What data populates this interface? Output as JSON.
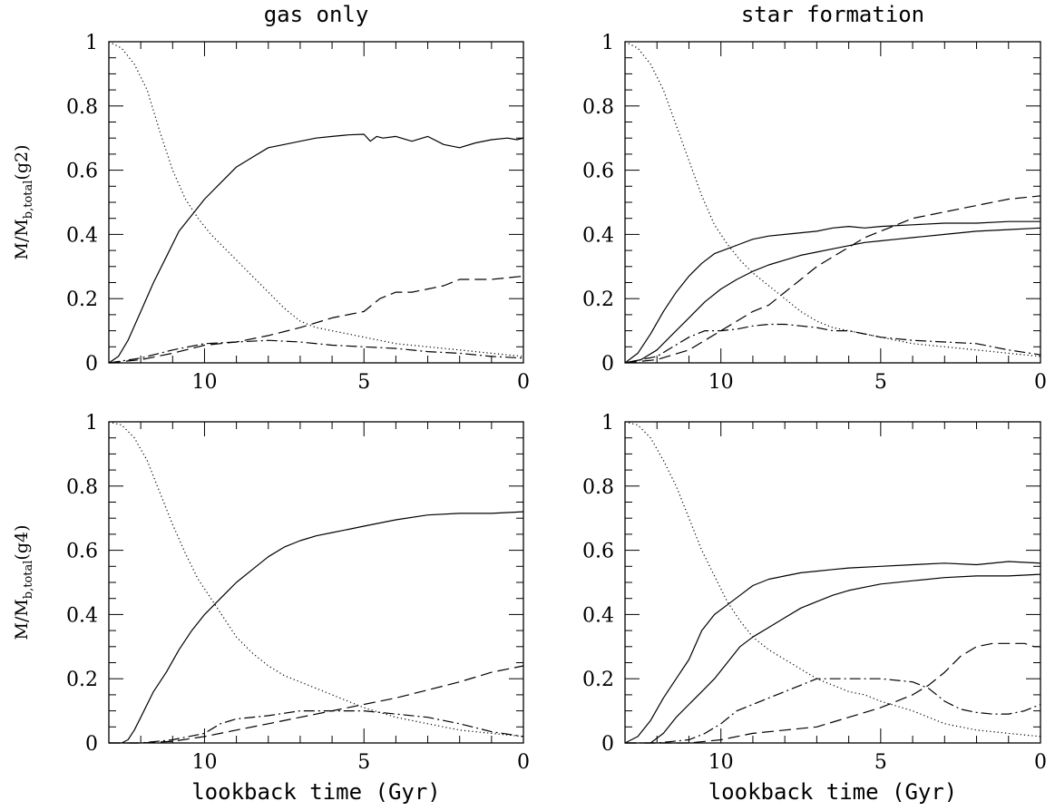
{
  "chart_data": [
    {
      "type": "line",
      "title": "gas only",
      "xlabel": "",
      "ylabel": "M/M_b,total(g2)",
      "ylabel_main": "M/M",
      "ylabel_sub": "b,total",
      "ylabel_tail": "(g2)",
      "xlim": [
        13.0,
        0.0
      ],
      "ylim": [
        0,
        1
      ],
      "x_ticks": [
        "10",
        "5",
        "0"
      ],
      "y_ticks": [
        "0",
        "0.2",
        "0.4",
        "0.6",
        "0.8",
        "1"
      ],
      "series": [
        {
          "style": "solid",
          "x": [
            13.0,
            12.7,
            12.4,
            12.0,
            11.6,
            11.2,
            10.8,
            10.4,
            10.0,
            9.5,
            9.0,
            8.5,
            8.0,
            7.5,
            7.0,
            6.5,
            6.0,
            5.5,
            5.0,
            4.8,
            4.6,
            4.4,
            4.0,
            3.5,
            3.0,
            2.5,
            2.0,
            1.5,
            1.0,
            0.5,
            0.2,
            0.0
          ],
          "y": [
            0.0,
            0.02,
            0.07,
            0.16,
            0.25,
            0.33,
            0.41,
            0.46,
            0.51,
            0.56,
            0.61,
            0.64,
            0.67,
            0.68,
            0.69,
            0.7,
            0.705,
            0.71,
            0.712,
            0.69,
            0.705,
            0.7,
            0.705,
            0.69,
            0.705,
            0.68,
            0.67,
            0.685,
            0.695,
            0.7,
            0.695,
            0.7
          ]
        },
        {
          "style": "dotted",
          "x": [
            13.0,
            12.6,
            12.2,
            11.8,
            11.4,
            11.0,
            10.6,
            10.2,
            9.8,
            9.4,
            9.0,
            8.5,
            8.0,
            7.5,
            7.0,
            6.5,
            6.0,
            5.5,
            5.0,
            4.0,
            3.0,
            2.0,
            1.0,
            0.0
          ],
          "y": [
            1.0,
            0.98,
            0.93,
            0.85,
            0.72,
            0.6,
            0.51,
            0.45,
            0.4,
            0.36,
            0.32,
            0.27,
            0.22,
            0.17,
            0.13,
            0.11,
            0.1,
            0.09,
            0.08,
            0.06,
            0.05,
            0.04,
            0.03,
            0.02
          ]
        },
        {
          "style": "dashed",
          "x": [
            13.0,
            12.0,
            11.0,
            10.0,
            9.0,
            8.0,
            7.0,
            6.0,
            5.5,
            5.0,
            4.5,
            4.0,
            3.5,
            3.0,
            2.5,
            2.0,
            1.5,
            1.0,
            0.5,
            0.0
          ],
          "y": [
            0.0,
            0.01,
            0.03,
            0.055,
            0.065,
            0.085,
            0.11,
            0.14,
            0.15,
            0.16,
            0.2,
            0.22,
            0.22,
            0.23,
            0.24,
            0.26,
            0.26,
            0.26,
            0.265,
            0.27
          ]
        },
        {
          "style": "dashdot",
          "x": [
            13.0,
            12.0,
            11.0,
            10.0,
            9.0,
            8.0,
            7.0,
            6.0,
            5.0,
            4.0,
            3.0,
            2.0,
            1.0,
            0.0
          ],
          "y": [
            0.0,
            0.015,
            0.04,
            0.06,
            0.065,
            0.07,
            0.065,
            0.055,
            0.05,
            0.045,
            0.035,
            0.03,
            0.02,
            0.015
          ]
        }
      ]
    },
    {
      "type": "line",
      "title": "star formation",
      "xlabel": "",
      "ylabel": "",
      "xlim": [
        13.0,
        0.0
      ],
      "ylim": [
        0,
        1
      ],
      "x_ticks": [
        "10",
        "5",
        "0"
      ],
      "y_ticks": [
        "0",
        "0.2",
        "0.4",
        "0.6",
        "0.8",
        "1"
      ],
      "series": [
        {
          "style": "solid",
          "x": [
            13.0,
            12.6,
            12.2,
            11.8,
            11.4,
            11.0,
            10.6,
            10.2,
            9.8,
            9.4,
            9.0,
            8.5,
            8.0,
            7.5,
            7.0,
            6.5,
            6.0,
            5.5,
            5.0,
            4.0,
            3.0,
            2.0,
            1.0,
            0.0
          ],
          "y": [
            0.0,
            0.03,
            0.09,
            0.16,
            0.22,
            0.27,
            0.31,
            0.34,
            0.355,
            0.37,
            0.385,
            0.395,
            0.4,
            0.405,
            0.41,
            0.42,
            0.425,
            0.42,
            0.425,
            0.43,
            0.435,
            0.435,
            0.44,
            0.44
          ]
        },
        {
          "style": "solid",
          "x": [
            13.0,
            12.5,
            12.0,
            11.5,
            11.0,
            10.5,
            10.0,
            9.5,
            9.0,
            8.5,
            8.0,
            7.5,
            7.0,
            6.5,
            6.0,
            5.5,
            5.0,
            4.5,
            4.0,
            3.0,
            2.0,
            1.0,
            0.0
          ],
          "y": [
            0.0,
            0.01,
            0.04,
            0.09,
            0.14,
            0.19,
            0.23,
            0.26,
            0.285,
            0.305,
            0.32,
            0.335,
            0.345,
            0.355,
            0.365,
            0.375,
            0.38,
            0.385,
            0.39,
            0.4,
            0.41,
            0.415,
            0.42
          ]
        },
        {
          "style": "dotted",
          "x": [
            13.0,
            12.6,
            12.2,
            11.8,
            11.4,
            11.0,
            10.6,
            10.2,
            9.8,
            9.4,
            9.0,
            8.5,
            8.0,
            7.5,
            7.0,
            6.5,
            6.0,
            5.5,
            5.0,
            4.0,
            3.0,
            2.0,
            1.0,
            0.0
          ],
          "y": [
            1.0,
            0.98,
            0.93,
            0.85,
            0.74,
            0.63,
            0.52,
            0.43,
            0.37,
            0.32,
            0.28,
            0.24,
            0.2,
            0.16,
            0.13,
            0.11,
            0.1,
            0.09,
            0.08,
            0.06,
            0.05,
            0.04,
            0.03,
            0.02
          ]
        },
        {
          "style": "dashed",
          "x": [
            13.0,
            12.0,
            11.0,
            10.5,
            10.0,
            9.5,
            9.0,
            8.5,
            8.0,
            7.5,
            7.0,
            6.5,
            6.0,
            5.5,
            5.0,
            4.5,
            4.0,
            3.0,
            2.0,
            1.0,
            0.0
          ],
          "y": [
            0.0,
            0.01,
            0.04,
            0.07,
            0.1,
            0.13,
            0.16,
            0.18,
            0.22,
            0.26,
            0.3,
            0.33,
            0.36,
            0.39,
            0.41,
            0.43,
            0.45,
            0.47,
            0.49,
            0.51,
            0.52
          ]
        },
        {
          "style": "dashdot",
          "x": [
            13.0,
            12.0,
            11.5,
            11.0,
            10.5,
            10.0,
            9.5,
            9.0,
            8.5,
            8.0,
            7.5,
            7.0,
            6.5,
            6.0,
            5.0,
            4.0,
            3.0,
            2.0,
            1.0,
            0.0
          ],
          "y": [
            0.0,
            0.02,
            0.05,
            0.08,
            0.1,
            0.1,
            0.105,
            0.115,
            0.12,
            0.12,
            0.115,
            0.11,
            0.1,
            0.1,
            0.08,
            0.07,
            0.065,
            0.06,
            0.04,
            0.025
          ]
        }
      ]
    },
    {
      "type": "line",
      "title": "",
      "xlabel": "lookback time (Gyr)",
      "ylabel": "M/M_b,total(g4)",
      "ylabel_main": "M/M",
      "ylabel_sub": "b,total",
      "ylabel_tail": "(g4)",
      "xlim": [
        13.0,
        0.0
      ],
      "ylim": [
        0,
        1
      ],
      "x_ticks": [
        "10",
        "5",
        "0"
      ],
      "y_ticks": [
        "0",
        "0.2",
        "0.4",
        "0.6",
        "0.8",
        "1"
      ],
      "series": [
        {
          "style": "solid",
          "x": [
            12.6,
            12.4,
            12.2,
            12.0,
            11.6,
            11.2,
            10.8,
            10.4,
            10.0,
            9.5,
            9.0,
            8.5,
            8.0,
            7.5,
            7.0,
            6.5,
            6.0,
            5.5,
            5.0,
            4.0,
            3.0,
            2.0,
            1.0,
            0.0
          ],
          "y": [
            0.0,
            0.01,
            0.04,
            0.08,
            0.16,
            0.22,
            0.29,
            0.35,
            0.4,
            0.45,
            0.5,
            0.54,
            0.58,
            0.61,
            0.63,
            0.645,
            0.655,
            0.665,
            0.675,
            0.695,
            0.71,
            0.715,
            0.715,
            0.72
          ]
        },
        {
          "style": "dotted",
          "x": [
            13.0,
            12.6,
            12.2,
            11.8,
            11.4,
            11.0,
            10.6,
            10.2,
            9.8,
            9.4,
            9.0,
            8.5,
            8.0,
            7.5,
            7.0,
            6.5,
            6.0,
            5.5,
            5.0,
            4.0,
            3.0,
            2.0,
            1.0,
            0.0
          ],
          "y": [
            1.0,
            0.99,
            0.95,
            0.88,
            0.78,
            0.68,
            0.59,
            0.51,
            0.45,
            0.39,
            0.33,
            0.28,
            0.24,
            0.21,
            0.19,
            0.17,
            0.15,
            0.13,
            0.11,
            0.08,
            0.06,
            0.04,
            0.03,
            0.02
          ]
        },
        {
          "style": "dashed",
          "x": [
            13.0,
            12.0,
            11.0,
            10.0,
            9.0,
            8.0,
            7.0,
            6.0,
            5.0,
            4.0,
            3.0,
            2.0,
            1.0,
            0.0
          ],
          "y": [
            0.0,
            0.0,
            0.005,
            0.02,
            0.04,
            0.06,
            0.08,
            0.1,
            0.12,
            0.14,
            0.165,
            0.19,
            0.22,
            0.24
          ]
        },
        {
          "style": "dashdot",
          "x": [
            13.0,
            12.0,
            11.0,
            10.0,
            9.5,
            9.0,
            8.0,
            7.0,
            6.0,
            5.0,
            4.0,
            3.0,
            2.0,
            1.0,
            0.0
          ],
          "y": [
            0.0,
            0.0,
            0.01,
            0.03,
            0.06,
            0.075,
            0.085,
            0.1,
            0.1,
            0.1,
            0.09,
            0.08,
            0.06,
            0.035,
            0.02
          ]
        }
      ]
    },
    {
      "type": "line",
      "title": "",
      "xlabel": "lookback time (Gyr)",
      "ylabel": "",
      "xlim": [
        13.0,
        0.0
      ],
      "ylim": [
        0,
        1
      ],
      "x_ticks": [
        "10",
        "5",
        "0"
      ],
      "y_ticks": [
        "0",
        "0.2",
        "0.4",
        "0.6",
        "0.8",
        "1"
      ],
      "series": [
        {
          "style": "solid",
          "x": [
            13.0,
            12.6,
            12.2,
            11.8,
            11.4,
            11.0,
            10.6,
            10.2,
            9.8,
            9.4,
            9.0,
            8.5,
            8.0,
            7.5,
            7.0,
            6.5,
            6.0,
            5.0,
            4.0,
            3.0,
            2.0,
            1.0,
            0.0
          ],
          "y": [
            0.0,
            0.02,
            0.07,
            0.14,
            0.2,
            0.26,
            0.35,
            0.4,
            0.43,
            0.46,
            0.49,
            0.51,
            0.52,
            0.53,
            0.535,
            0.54,
            0.545,
            0.55,
            0.555,
            0.56,
            0.555,
            0.565,
            0.56
          ]
        },
        {
          "style": "solid",
          "x": [
            12.2,
            11.8,
            11.4,
            11.0,
            10.6,
            10.2,
            9.8,
            9.4,
            9.0,
            8.5,
            8.0,
            7.5,
            7.0,
            6.5,
            6.0,
            5.5,
            5.0,
            4.0,
            3.0,
            2.0,
            1.0,
            0.0
          ],
          "y": [
            0.0,
            0.03,
            0.08,
            0.12,
            0.16,
            0.2,
            0.25,
            0.3,
            0.33,
            0.36,
            0.39,
            0.42,
            0.44,
            0.46,
            0.475,
            0.485,
            0.495,
            0.505,
            0.515,
            0.52,
            0.52,
            0.525
          ]
        },
        {
          "style": "dotted",
          "x": [
            13.0,
            12.6,
            12.2,
            11.8,
            11.4,
            11.0,
            10.6,
            10.2,
            9.8,
            9.4,
            9.0,
            8.5,
            8.0,
            7.5,
            7.0,
            6.5,
            6.0,
            5.5,
            5.0,
            4.0,
            3.0,
            2.0,
            1.0,
            0.0
          ],
          "y": [
            1.0,
            0.99,
            0.95,
            0.88,
            0.8,
            0.7,
            0.6,
            0.52,
            0.44,
            0.38,
            0.33,
            0.29,
            0.26,
            0.23,
            0.2,
            0.18,
            0.16,
            0.15,
            0.13,
            0.1,
            0.06,
            0.04,
            0.03,
            0.02
          ]
        },
        {
          "style": "dashed",
          "x": [
            13.0,
            11.0,
            10.0,
            9.0,
            8.0,
            7.0,
            6.0,
            5.0,
            4.0,
            3.5,
            3.0,
            2.5,
            2.0,
            1.5,
            1.0,
            0.5,
            0.2,
            0.0
          ],
          "y": [
            0.0,
            0.0,
            0.01,
            0.03,
            0.04,
            0.05,
            0.08,
            0.11,
            0.15,
            0.18,
            0.22,
            0.27,
            0.3,
            0.31,
            0.31,
            0.31,
            0.3,
            0.3
          ]
        },
        {
          "style": "dashdot",
          "x": [
            13.0,
            12.0,
            11.0,
            10.5,
            10.0,
            9.5,
            9.0,
            8.5,
            8.0,
            7.5,
            7.0,
            6.0,
            5.0,
            4.0,
            3.5,
            3.0,
            2.5,
            2.0,
            1.5,
            1.0,
            0.5,
            0.0
          ],
          "y": [
            0.0,
            0.0,
            0.01,
            0.03,
            0.06,
            0.1,
            0.12,
            0.14,
            0.16,
            0.18,
            0.2,
            0.2,
            0.2,
            0.19,
            0.17,
            0.13,
            0.105,
            0.095,
            0.09,
            0.09,
            0.1,
            0.12
          ]
        }
      ]
    }
  ]
}
